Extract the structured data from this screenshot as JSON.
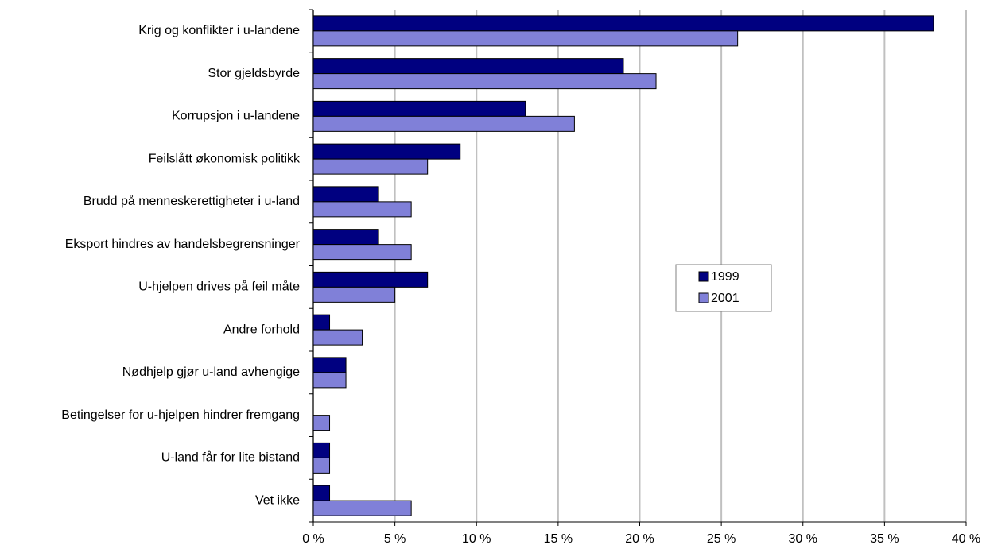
{
  "chart_data": {
    "type": "bar",
    "orientation": "horizontal",
    "categories": [
      "Krig og konflikter i u-landene",
      "Stor gjeldsbyrde",
      "Korrupsjon i u-landene",
      "Feilslått økonomisk politikk",
      "Brudd på menneskerettigheter i u-land",
      "Eksport hindres av handelsbegrensninger",
      "U-hjelpen drives på feil måte",
      "Andre forhold",
      "Nødhjelp gjør u-land avhengige",
      "Betingelser for u-hjelpen hindrer fremgang",
      "U-land får for lite bistand",
      "Vet ikke"
    ],
    "series": [
      {
        "name": "1999",
        "color": "#000080",
        "values": [
          38,
          19,
          13,
          9,
          4,
          4,
          7,
          1,
          2,
          0,
          1,
          1
        ]
      },
      {
        "name": "2001",
        "color": "#8080d8",
        "values": [
          26,
          21,
          16,
          7,
          6,
          6,
          5,
          3,
          2,
          1,
          1,
          6
        ]
      }
    ],
    "xlim": [
      0,
      40
    ],
    "xticks": [
      {
        "value": 0,
        "label": "0 %"
      },
      {
        "value": 5,
        "label": "5 %"
      },
      {
        "value": 10,
        "label": "10 %"
      },
      {
        "value": 15,
        "label": "15 %"
      },
      {
        "value": 20,
        "label": "20 %"
      },
      {
        "value": 25,
        "label": "25 %"
      },
      {
        "value": 30,
        "label": "30 %"
      },
      {
        "value": 35,
        "label": "35 %"
      },
      {
        "value": 40,
        "label": "40 %"
      }
    ],
    "grid": true,
    "legend_position": "center-right"
  }
}
